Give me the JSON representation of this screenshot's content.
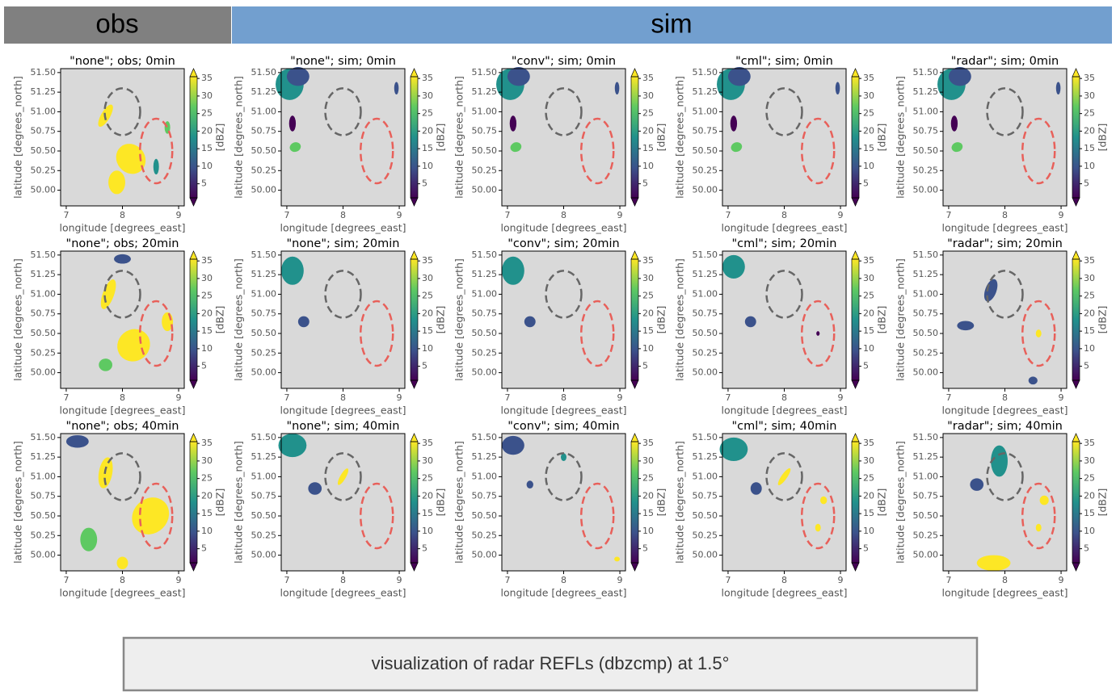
{
  "header": {
    "obs": "obs",
    "sim": "sim"
  },
  "axes": {
    "xlabel": "longitude [degrees_east]",
    "ylabel": "latitude [degrees_north]",
    "xlim": [
      6.9,
      9.1
    ],
    "ylim": [
      49.8,
      51.55
    ],
    "xticks": [
      7,
      8,
      9
    ],
    "yticks": [
      {
        "value": 50,
        "label": "50.00"
      },
      {
        "value": 50.25,
        "label": "50.25"
      },
      {
        "value": 50.5,
        "label": "50.50"
      },
      {
        "value": 50.75,
        "label": "50.75"
      },
      {
        "value": 51,
        "label": "51.00"
      },
      {
        "value": 51.25,
        "label": "51.25"
      },
      {
        "value": 51.5,
        "label": "51.50"
      }
    ],
    "colorbar": {
      "label": "[dBZ]",
      "lim": [
        1,
        35.5
      ],
      "ticks": [
        5,
        10,
        15,
        20,
        25,
        30,
        35
      ]
    }
  },
  "panels": [
    [
      "\"none\"; obs; 0min",
      "\"none\"; sim; 0min",
      "\"conv\"; sim; 0min",
      "\"cml\"; sim; 0min",
      "\"radar\"; sim; 0min"
    ],
    [
      "\"none\"; obs; 20min",
      "\"none\"; sim; 20min",
      "\"conv\"; sim; 20min",
      "\"cml\"; sim; 20min",
      "\"radar\"; sim; 20min"
    ],
    [
      "\"none\"; obs; 40min",
      "\"none\"; sim; 40min",
      "\"conv\"; sim; 40min",
      "\"cml\"; sim; 40min",
      "\"radar\"; sim; 40min"
    ]
  ],
  "caption": "visualization of radar REFLs (dbzcmp) at 1.5°"
}
